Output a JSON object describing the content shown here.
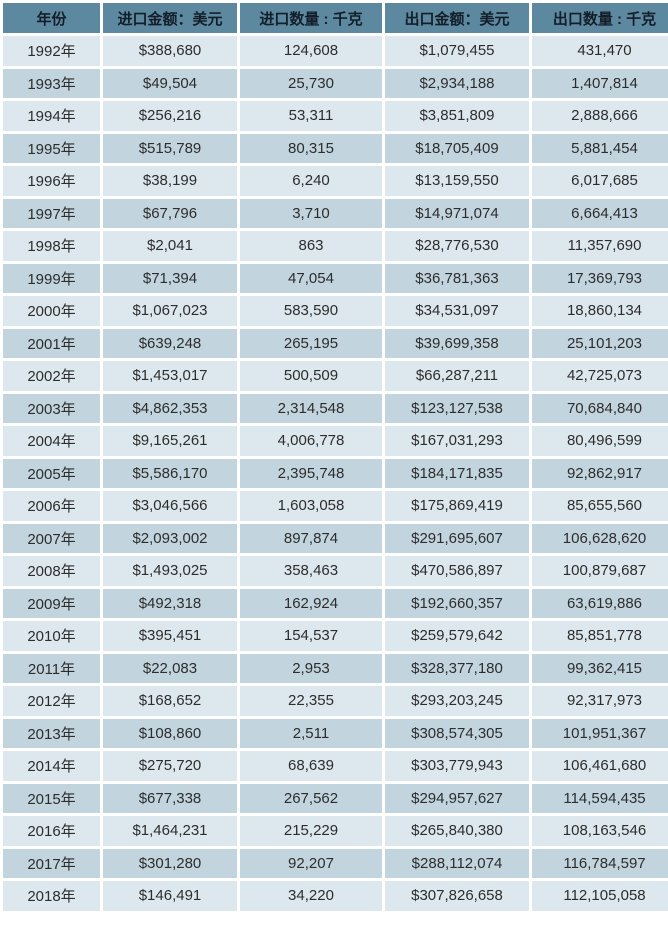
{
  "colors": {
    "header_bg": "#5d89a0",
    "header_text": "#131e28",
    "row_light": "#dde8ee",
    "row_dark": "#c2d4de",
    "cell_text": "#2d2d2d",
    "gap": "#ffffff"
  },
  "table": {
    "columns": [
      {
        "key": "year",
        "label": "年份"
      },
      {
        "key": "import_amount",
        "label": "进口金额：美元"
      },
      {
        "key": "import_quantity",
        "label": "进口数量 : 千克"
      },
      {
        "key": "export_amount",
        "label": "出口金额：美元"
      },
      {
        "key": "export_quantity",
        "label": "出口数量 : 千克"
      }
    ],
    "rows": [
      [
        "1992年",
        "$388,680",
        "124,608",
        "$1,079,455",
        "431,470"
      ],
      [
        "1993年",
        "$49,504",
        "25,730",
        "$2,934,188",
        "1,407,814"
      ],
      [
        "1994年",
        "$256,216",
        "53,311",
        "$3,851,809",
        "2,888,666"
      ],
      [
        "1995年",
        "$515,789",
        "80,315",
        "$18,705,409",
        "5,881,454"
      ],
      [
        "1996年",
        "$38,199",
        "6,240",
        "$13,159,550",
        "6,017,685"
      ],
      [
        "1997年",
        "$67,796",
        "3,710",
        "$14,971,074",
        "6,664,413"
      ],
      [
        "1998年",
        "$2,041",
        "863",
        "$28,776,530",
        "11,357,690"
      ],
      [
        "1999年",
        "$71,394",
        "47,054",
        "$36,781,363",
        "17,369,793"
      ],
      [
        "2000年",
        "$1,067,023",
        "583,590",
        "$34,531,097",
        "18,860,134"
      ],
      [
        "2001年",
        "$639,248",
        "265,195",
        "$39,699,358",
        "25,101,203"
      ],
      [
        "2002年",
        "$1,453,017",
        "500,509",
        "$66,287,211",
        "42,725,073"
      ],
      [
        "2003年",
        "$4,862,353",
        "2,314,548",
        "$123,127,538",
        "70,684,840"
      ],
      [
        "2004年",
        "$9,165,261",
        "4,006,778",
        "$167,031,293",
        "80,496,599"
      ],
      [
        "2005年",
        "$5,586,170",
        "2,395,748",
        "$184,171,835",
        "92,862,917"
      ],
      [
        "2006年",
        "$3,046,566",
        "1,603,058",
        "$175,869,419",
        "85,655,560"
      ],
      [
        "2007年",
        "$2,093,002",
        "897,874",
        "$291,695,607",
        "106,628,620"
      ],
      [
        "2008年",
        "$1,493,025",
        "358,463",
        "$470,586,897",
        "100,879,687"
      ],
      [
        "2009年",
        "$492,318",
        "162,924",
        "$192,660,357",
        "63,619,886"
      ],
      [
        "2010年",
        "$395,451",
        "154,537",
        "$259,579,642",
        "85,851,778"
      ],
      [
        "2011年",
        "$22,083",
        "2,953",
        "$328,377,180",
        "99,362,415"
      ],
      [
        "2012年",
        "$168,652",
        "22,355",
        "$293,203,245",
        "92,317,973"
      ],
      [
        "2013年",
        "$108,860",
        "2,511",
        "$308,574,305",
        "101,951,367"
      ],
      [
        "2014年",
        "$275,720",
        "68,639",
        "$303,779,943",
        "106,461,680"
      ],
      [
        "2015年",
        "$677,338",
        "267,562",
        "$294,957,627",
        "114,594,435"
      ],
      [
        "2016年",
        "$1,464,231",
        "215,229",
        "$265,840,380",
        "108,163,546"
      ],
      [
        "2017年",
        "$301,280",
        "92,207",
        "$288,112,074",
        "116,784,597"
      ],
      [
        "2018年",
        "$146,491",
        "34,220",
        "$307,826,658",
        "112,105,058"
      ]
    ]
  },
  "chart_data": {
    "type": "table",
    "title": "",
    "columns": [
      "年份",
      "进口金额：美元",
      "进口数量 : 千克",
      "出口金额：美元",
      "出口数量 : 千克"
    ],
    "categories": [
      "1992年",
      "1993年",
      "1994年",
      "1995年",
      "1996年",
      "1997年",
      "1998年",
      "1999年",
      "2000年",
      "2001年",
      "2002年",
      "2003年",
      "2004年",
      "2005年",
      "2006年",
      "2007年",
      "2008年",
      "2009年",
      "2010年",
      "2011年",
      "2012年",
      "2013年",
      "2014年",
      "2015年",
      "2016年",
      "2017年",
      "2018年"
    ],
    "series": [
      {
        "name": "进口金额：美元",
        "values": [
          388680,
          49504,
          256216,
          515789,
          38199,
          67796,
          2041,
          71394,
          1067023,
          639248,
          1453017,
          4862353,
          9165261,
          5586170,
          3046566,
          2093002,
          1493025,
          492318,
          395451,
          22083,
          168652,
          108860,
          275720,
          677338,
          1464231,
          301280,
          146491
        ]
      },
      {
        "name": "进口数量 : 千克",
        "values": [
          124608,
          25730,
          53311,
          80315,
          6240,
          3710,
          863,
          47054,
          583590,
          265195,
          500509,
          2314548,
          4006778,
          2395748,
          1603058,
          897874,
          358463,
          162924,
          154537,
          2953,
          22355,
          2511,
          68639,
          267562,
          215229,
          92207,
          34220
        ]
      },
      {
        "name": "出口金额：美元",
        "values": [
          1079455,
          2934188,
          3851809,
          18705409,
          13159550,
          14971074,
          28776530,
          36781363,
          34531097,
          39699358,
          66287211,
          123127538,
          167031293,
          184171835,
          175869419,
          291695607,
          470586897,
          192660357,
          259579642,
          328377180,
          293203245,
          308574305,
          303779943,
          294957627,
          265840380,
          288112074,
          307826658
        ]
      },
      {
        "name": "出口数量 : 千克",
        "values": [
          431470,
          1407814,
          2888666,
          5881454,
          6017685,
          6664413,
          11357690,
          17369793,
          18860134,
          25101203,
          42725073,
          70684840,
          80496599,
          92862917,
          85655560,
          106628620,
          100879687,
          63619886,
          85851778,
          99362415,
          92317973,
          101951367,
          106461680,
          114594435,
          108163546,
          116784597,
          112105058
        ]
      }
    ]
  }
}
